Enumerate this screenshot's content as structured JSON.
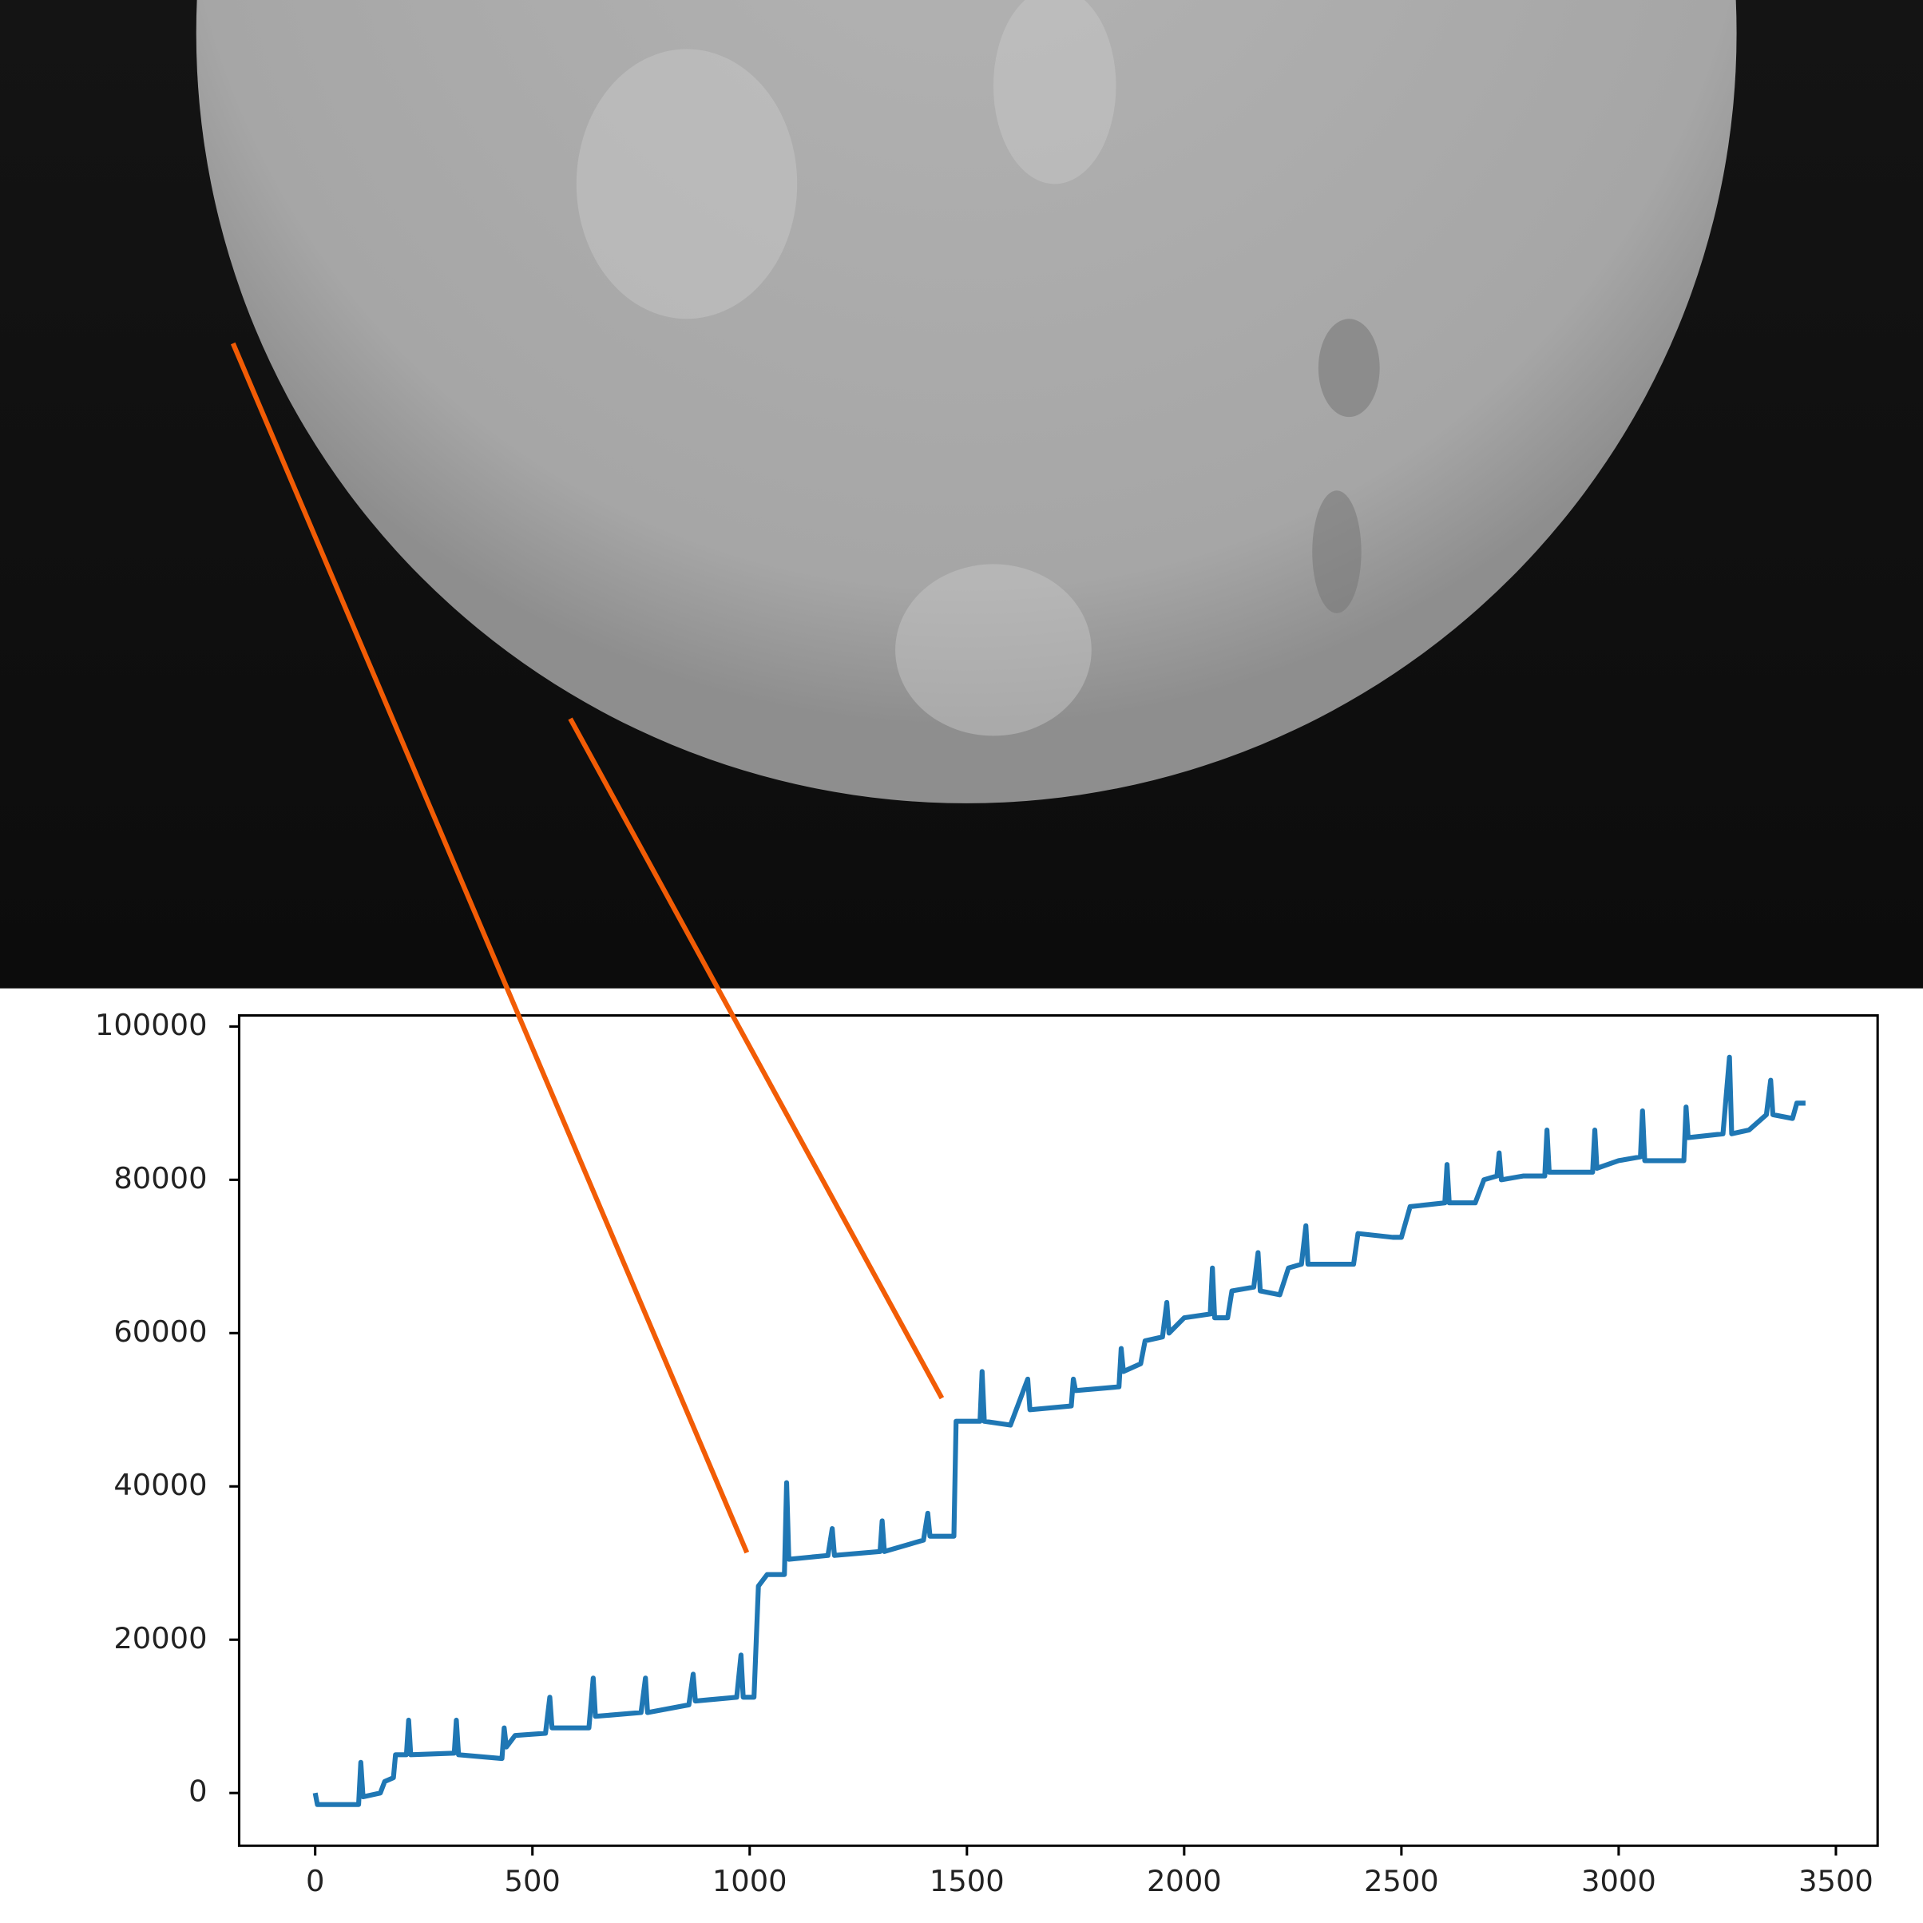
{
  "chart_data": {
    "type": "line",
    "color": "#1f77b4",
    "x": [
      0,
      5,
      100,
      105,
      110,
      150,
      160,
      180,
      185,
      210,
      215,
      220,
      320,
      325,
      330,
      430,
      435,
      440,
      460,
      530,
      540,
      545,
      630,
      640,
      645,
      750,
      760,
      765,
      860,
      870,
      875,
      970,
      980,
      985,
      1010,
      1020,
      1040,
      1080,
      1085,
      1090,
      1180,
      1190,
      1195,
      1300,
      1305,
      1310,
      1400,
      1410,
      1415,
      1470,
      1475,
      1530,
      1535,
      1540,
      1600,
      1640,
      1645,
      1740,
      1745,
      1750,
      1850,
      1855,
      1860,
      1900,
      1910,
      1950,
      1960,
      1965,
      2000,
      2060,
      2065,
      2070,
      2100,
      2110,
      2160,
      2170,
      2175,
      2220,
      2240,
      2270,
      2280,
      2285,
      2390,
      2400,
      2480,
      2500,
      2520,
      2600,
      2605,
      2610,
      2670,
      2690,
      2720,
      2725,
      2730,
      2780,
      2830,
      2835,
      2840,
      2940,
      2945,
      2950,
      3000,
      3050,
      3055,
      3060,
      3150,
      3155,
      3160,
      3240,
      3255,
      3260,
      3300,
      3340,
      3350,
      3355,
      3400,
      3410,
      3430
    ],
    "values": [
      0,
      -1500,
      -1500,
      4000,
      -500,
      0,
      1500,
      2000,
      5000,
      5000,
      9500,
      5000,
      5200,
      9500,
      5000,
      4500,
      8500,
      6000,
      7500,
      7800,
      12500,
      8500,
      8500,
      15000,
      10000,
      10500,
      15000,
      10500,
      11500,
      15500,
      12000,
      12500,
      18000,
      12500,
      12500,
      27000,
      28500,
      28500,
      40500,
      30500,
      31000,
      34500,
      31000,
      31500,
      35500,
      31500,
      33000,
      36500,
      33500,
      33500,
      48500,
      48500,
      55000,
      48500,
      48000,
      54000,
      50000,
      50500,
      54000,
      52500,
      53000,
      58000,
      55000,
      56000,
      59000,
      59500,
      64000,
      60000,
      62000,
      62500,
      68500,
      62000,
      62000,
      65500,
      66000,
      70500,
      65500,
      65000,
      68500,
      69000,
      74000,
      69000,
      69000,
      73000,
      72500,
      72500,
      76500,
      77000,
      82000,
      77000,
      77000,
      80000,
      80500,
      83500,
      80000,
      80500,
      80500,
      86500,
      81000,
      81000,
      86500,
      81500,
      82500,
      83000,
      89000,
      82500,
      82500,
      89500,
      85500,
      86000,
      96000,
      86000,
      86500,
      88500,
      93000,
      88500,
      88000,
      90000,
      90000
    ],
    "xlim": [
      -175,
      3596
    ],
    "ylim": [
      -6880,
      101440
    ],
    "xticks": [
      0,
      500,
      1000,
      1500,
      2000,
      2500,
      3000,
      3500
    ],
    "yticks": [
      0,
      20000,
      40000,
      60000,
      80000,
      100000
    ]
  }
}
